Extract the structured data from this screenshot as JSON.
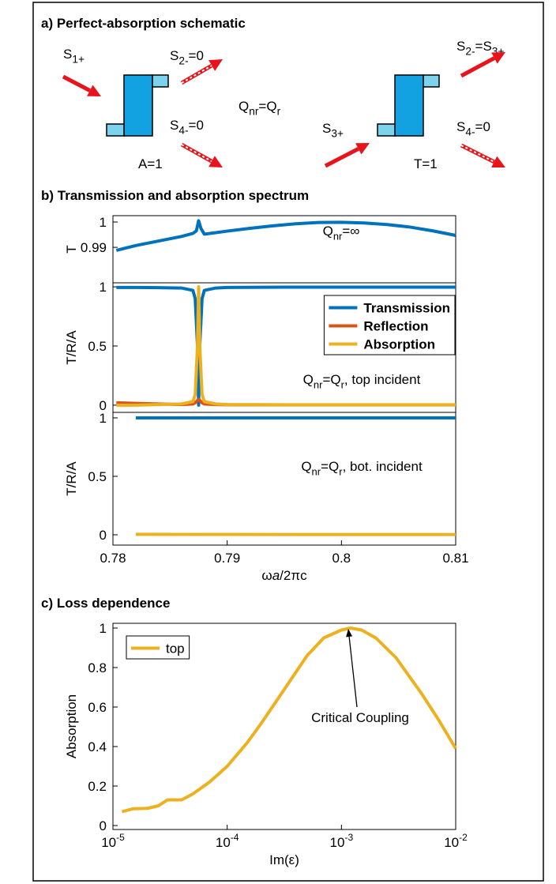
{
  "schematic": {
    "title": "a) Perfect-absorption schematic",
    "labels": [
      [
        {
          "t": "S"
        },
        {
          "sub": "1+"
        }
      ],
      [
        {
          "t": "S"
        },
        {
          "sub": "2-"
        },
        {
          "t": "=0"
        }
      ],
      [
        {
          "t": "S"
        },
        {
          "sub": "4-"
        },
        {
          "t": "=0"
        }
      ],
      [
        {
          "t": "A=1"
        }
      ],
      [
        {
          "t": "Q"
        },
        {
          "sub": "nr"
        },
        {
          "t": "=Q"
        },
        {
          "sub": "r"
        }
      ],
      [
        {
          "t": "S"
        },
        {
          "sub": "3+"
        }
      ],
      [
        {
          "t": "T=1"
        }
      ],
      [
        {
          "t": "S"
        },
        {
          "sub": "2-"
        },
        {
          "t": "=S"
        },
        {
          "sub": "3+"
        }
      ],
      [
        {
          "t": "S"
        },
        {
          "sub": "4-"
        },
        {
          "t": "=0"
        }
      ]
    ]
  },
  "chart_data": [
    {
      "type": "line",
      "title": "b) Transmission and absorption spectrum",
      "ylabel": "T",
      "annotation": [
        {
          "t": "Q"
        },
        {
          "sub": "nr"
        },
        {
          "t": "=∞"
        }
      ],
      "x": [
        0.7803,
        0.782,
        0.784,
        0.786,
        0.787,
        0.7873,
        0.7875,
        0.7877,
        0.788,
        0.789,
        0.79,
        0.792,
        0.794,
        0.796,
        0.798,
        0.8,
        0.802,
        0.804,
        0.806,
        0.808,
        0.81
      ],
      "series": [
        {
          "color": "#0072bd",
          "values": [
            0.9888,
            0.9907,
            0.9925,
            0.9943,
            0.9955,
            0.9965,
            1.0005,
            0.9975,
            0.9952,
            0.9958,
            0.9964,
            0.9975,
            0.9985,
            0.9993,
            0.9998,
            0.9999,
            0.9996,
            0.999,
            0.998,
            0.9965,
            0.9947
          ]
        }
      ],
      "xlim": [
        0.78,
        0.81
      ],
      "ylim": [
        0.976,
        1.0025
      ],
      "yticks": [
        0.99,
        1
      ]
    },
    {
      "type": "line",
      "ylabel": "T/R/A",
      "annotation": [
        {
          "t": "Q"
        },
        {
          "sub": "nr"
        },
        {
          "t": "=Q"
        },
        {
          "sub": "r"
        },
        {
          "t": ", top incident"
        }
      ],
      "x": [
        0.7803,
        0.782,
        0.784,
        0.786,
        0.787,
        0.7872,
        0.7874,
        0.7875,
        0.7876,
        0.7878,
        0.788,
        0.789,
        0.79,
        0.795,
        0.8,
        0.805,
        0.81
      ],
      "series": [
        {
          "name": "Transmission",
          "color": "#0072bd",
          "values": [
            0.995,
            0.995,
            0.993,
            0.99,
            0.97,
            0.9,
            0.5,
            0.0,
            0.5,
            0.9,
            0.97,
            0.99,
            0.995,
            0.997,
            0.997,
            0.997,
            0.997
          ]
        },
        {
          "name": "Reflection",
          "color": "#d95319",
          "values": [
            0.02,
            0.015,
            0.01,
            0.005,
            0.01,
            0.02,
            0.04,
            0.05,
            0.04,
            0.02,
            0.01,
            0.005,
            0.003,
            0.002,
            0.002,
            0.002,
            0.002
          ]
        },
        {
          "name": "Absorption",
          "color": "#edb120",
          "values": [
            0.0,
            0.0,
            0.005,
            0.01,
            0.03,
            0.09,
            0.5,
            1.0,
            0.5,
            0.09,
            0.03,
            0.01,
            0.005,
            0.003,
            0.003,
            0.003,
            0.003
          ]
        }
      ],
      "legend": "upper right",
      "xlim": [
        0.78,
        0.81
      ],
      "ylim": [
        -0.061,
        1.034
      ],
      "yticks": [
        0,
        0.5,
        1
      ]
    },
    {
      "type": "line",
      "ylabel": "T/R/A",
      "xlabel": [
        {
          "t": "ω"
        },
        {
          "i": "a"
        },
        {
          "t": "/2πc"
        }
      ],
      "annotation": [
        {
          "t": "Q"
        },
        {
          "sub": "nr"
        },
        {
          "t": "=Q"
        },
        {
          "sub": "r"
        },
        {
          "t": ", bot. incident"
        }
      ],
      "x": [
        0.782,
        0.79,
        0.8,
        0.81
      ],
      "series": [
        {
          "color": "#0072bd",
          "values": [
            1,
            1,
            1,
            1
          ]
        },
        {
          "color": "#edb120",
          "values": [
            0.004,
            0.003,
            0.002,
            0.002
          ]
        }
      ],
      "xlim": [
        0.78,
        0.81
      ],
      "xticks": [
        0.78,
        0.79,
        0.8,
        0.81
      ],
      "ylim": [
        -0.088,
        1.047
      ],
      "yticks": [
        0,
        0.5,
        1
      ]
    },
    {
      "type": "line",
      "title": "c) Loss dependence",
      "ylabel": "Absorption",
      "xlabel": "Im(ε)",
      "annotation": "Critical Coupling",
      "xscale": "log",
      "x": [
        1.2e-05,
        1.5e-05,
        2e-05,
        2.5e-05,
        3e-05,
        4e-05,
        5e-05,
        7e-05,
        0.0001,
        0.00015,
        0.0002,
        0.0003,
        0.0005,
        0.0007,
        0.001,
        0.0012,
        0.0015,
        0.002,
        0.003,
        0.005,
        0.007,
        0.01
      ],
      "series": [
        {
          "name": "top",
          "color": "#edb120",
          "values": [
            0.07,
            0.085,
            0.087,
            0.1,
            0.13,
            0.13,
            0.16,
            0.22,
            0.3,
            0.42,
            0.52,
            0.67,
            0.86,
            0.95,
            0.99,
            1.0,
            0.99,
            0.95,
            0.85,
            0.67,
            0.54,
            0.39
          ]
        }
      ],
      "legend": "upper left",
      "xlim": [
        1e-05,
        0.01
      ],
      "xticks": [
        {
          "value": 1e-05,
          "label": "10",
          "exponent": "-5"
        },
        {
          "value": 0.0001,
          "label": "10",
          "exponent": "-4"
        },
        {
          "value": 0.001,
          "label": "10",
          "exponent": "-3"
        },
        {
          "value": 0.01,
          "label": "10",
          "exponent": "-2"
        }
      ],
      "ylim": [
        -0.02,
        1.024
      ],
      "yticks": [
        0,
        0.2,
        0.4,
        0.6,
        0.8,
        1
      ]
    }
  ]
}
